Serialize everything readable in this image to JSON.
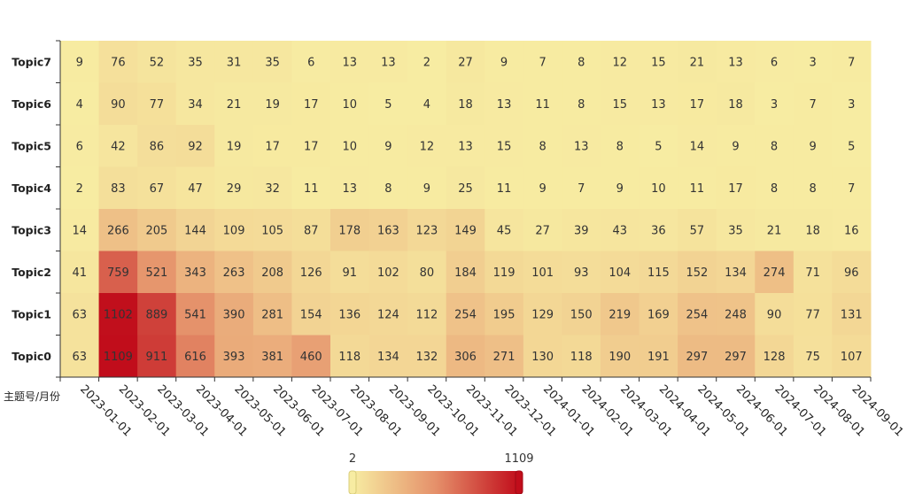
{
  "chart_data": {
    "type": "heatmap",
    "title": "",
    "xlabel": "",
    "ylabel": "",
    "corner_label": "主题号/月份",
    "x_categories": [
      "2023-01-01",
      "2023-02-01",
      "2023-03-01",
      "2023-04-01",
      "2023-05-01",
      "2023-06-01",
      "2023-07-01",
      "2023-08-01",
      "2023-09-01",
      "2023-10-01",
      "2023-11-01",
      "2023-12-01",
      "2024-01-01",
      "2024-02-01",
      "2024-03-01",
      "2024-04-01",
      "2024-05-01",
      "2024-06-01",
      "2024-07-01",
      "2024-08-01",
      "2024-09-01"
    ],
    "y_categories": [
      "Topic7",
      "Topic6",
      "Topic5",
      "Topic4",
      "Topic3",
      "Topic2",
      "Topic1",
      "Topic0"
    ],
    "values": [
      [
        9,
        76,
        52,
        35,
        31,
        35,
        6,
        13,
        13,
        2,
        27,
        9,
        7,
        8,
        12,
        15,
        21,
        13,
        6,
        3,
        7
      ],
      [
        4,
        90,
        77,
        34,
        21,
        19,
        17,
        10,
        5,
        4,
        18,
        13,
        11,
        8,
        15,
        13,
        17,
        18,
        3,
        7,
        3
      ],
      [
        6,
        42,
        86,
        92,
        19,
        17,
        17,
        10,
        9,
        12,
        13,
        15,
        8,
        13,
        8,
        5,
        14,
        9,
        8,
        9,
        5
      ],
      [
        2,
        83,
        67,
        47,
        29,
        32,
        11,
        13,
        8,
        9,
        25,
        11,
        9,
        7,
        9,
        10,
        11,
        17,
        8,
        8,
        7
      ],
      [
        14,
        266,
        205,
        144,
        109,
        105,
        87,
        178,
        163,
        123,
        149,
        45,
        27,
        39,
        43,
        36,
        57,
        35,
        21,
        18,
        16
      ],
      [
        41,
        759,
        521,
        343,
        263,
        208,
        126,
        91,
        102,
        80,
        184,
        119,
        101,
        93,
        104,
        115,
        152,
        134,
        274,
        71,
        96
      ],
      [
        63,
        1102,
        889,
        541,
        390,
        281,
        154,
        136,
        124,
        112,
        254,
        195,
        129,
        150,
        219,
        169,
        254,
        248,
        90,
        77,
        131
      ],
      [
        63,
        1109,
        911,
        616,
        393,
        381,
        460,
        118,
        134,
        132,
        306,
        271,
        130,
        118,
        190,
        191,
        297,
        297,
        128,
        75,
        107
      ]
    ],
    "visual_map": {
      "min": 2,
      "max": 1109,
      "min_label": "2",
      "max_label": "1109"
    },
    "colors": {
      "low": "#f7eca2",
      "mid": "#e5906a",
      "high": "#c10d1b"
    }
  }
}
